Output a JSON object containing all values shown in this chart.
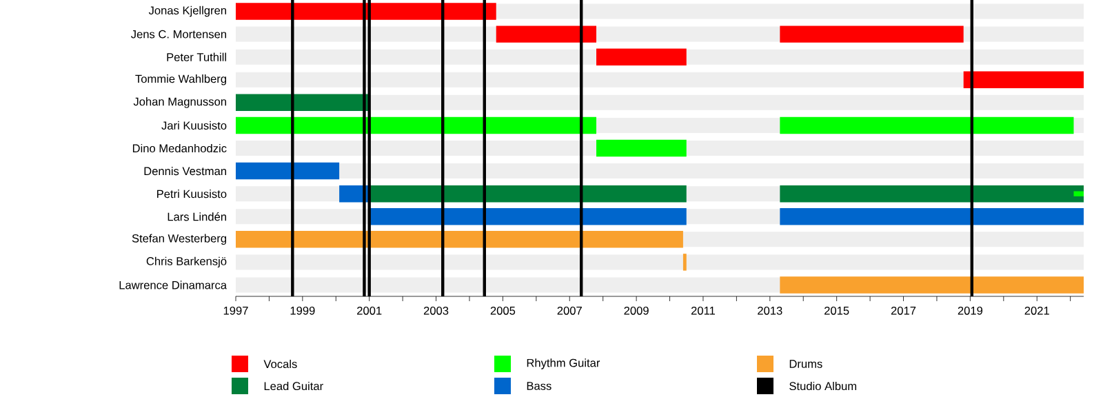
{
  "chart_data": {
    "type": "bar",
    "orientation": "horizontal",
    "categories": [
      "Jonas Kjellgren",
      "Jens C. Mortensen",
      "Peter Tuthill",
      "Tommie Wahlberg",
      "Johan Magnusson",
      "Jari Kuusisto",
      "Dino Medanhodzic",
      "Dennis Vestman",
      "Petri Kuusisto",
      "Lars Lindén",
      "Stefan Westerberg",
      "Chris Barkensjö",
      "Lawrence Dinamarca"
    ],
    "series": [
      {
        "name": "Vocals",
        "color": "#ff0000",
        "base": [
          1997,
          2004.8,
          2007.8,
          2018.8,
          null,
          null,
          null,
          null,
          null,
          null,
          null,
          null,
          null
        ],
        "values": [
          7.8,
          3.0,
          2.7,
          3.6,
          null,
          null,
          null,
          null,
          null,
          null,
          null,
          null,
          null
        ]
      },
      {
        "name": "Lead Guitar",
        "color": "#007f3a",
        "base": [
          null,
          null,
          null,
          null,
          1997,
          null,
          null,
          null,
          2001,
          null,
          null,
          null,
          null
        ],
        "values": [
          null,
          null,
          null,
          null,
          4.0,
          null,
          null,
          null,
          9.5,
          null,
          null,
          null,
          null
        ]
      },
      {
        "name": "Rhythm Guitar",
        "color": "#00ff00",
        "base": [
          null,
          null,
          null,
          null,
          null,
          1997,
          2007.8,
          null,
          null,
          null,
          null,
          null,
          null
        ],
        "values": [
          null,
          null,
          null,
          null,
          null,
          10.8,
          2.7,
          null,
          null,
          null,
          null,
          null,
          null
        ]
      },
      {
        "name": "Bass",
        "color": "#0066cc",
        "base": [
          null,
          null,
          null,
          null,
          null,
          null,
          null,
          1997,
          2000.1,
          2001,
          null,
          null,
          null
        ],
        "values": [
          null,
          null,
          null,
          null,
          null,
          null,
          null,
          3.1,
          0.9,
          9.5,
          null,
          null,
          null
        ]
      },
      {
        "name": "Drums",
        "color": "#f9a12e",
        "base": [
          null,
          null,
          null,
          null,
          null,
          null,
          null,
          null,
          null,
          null,
          1997,
          2010.4,
          2013.3
        ],
        "values": [
          null,
          null,
          null,
          null,
          null,
          null,
          null,
          null,
          null,
          null,
          13.4,
          0.1,
          9.1
        ]
      },
      {
        "color": "#ff0000",
        "base": [
          null,
          2013.3,
          null,
          null,
          null,
          null,
          null,
          null,
          null,
          null,
          null,
          null,
          null
        ],
        "values": [
          null,
          5.5,
          null,
          null,
          null,
          null,
          null,
          null,
          null,
          null,
          null,
          null,
          null
        ]
      },
      {
        "color": "#007f3a",
        "base": [
          null,
          null,
          null,
          null,
          null,
          null,
          null,
          null,
          2013.3,
          null,
          null,
          null,
          null
        ],
        "values": [
          null,
          null,
          null,
          null,
          null,
          null,
          null,
          null,
          9.1,
          null,
          null,
          null,
          null
        ]
      },
      {
        "color": "#00ff00",
        "base": [
          null,
          null,
          null,
          null,
          null,
          2013.3,
          null,
          null,
          2022.1,
          null,
          null,
          null,
          null
        ],
        "values": [
          null,
          null,
          null,
          null,
          null,
          8.8,
          null,
          null,
          0.3,
          null,
          null,
          null,
          null
        ]
      },
      {
        "color": "#0066cc",
        "base": [
          null,
          null,
          null,
          null,
          null,
          null,
          null,
          null,
          null,
          2013.3,
          null,
          null,
          null
        ],
        "values": [
          null,
          null,
          null,
          null,
          null,
          null,
          null,
          null,
          null,
          9.1,
          null,
          null,
          null
        ]
      }
    ],
    "ref_lines": [
      {
        "axis": "x",
        "value": 1998.7,
        "label": "Studio Album",
        "color": "#000000"
      },
      {
        "axis": "x",
        "value": 2000.85,
        "color": "#000000"
      },
      {
        "axis": "x",
        "value": 2001.0,
        "color": "#000000"
      },
      {
        "axis": "x",
        "value": 2003.2,
        "color": "#000000"
      },
      {
        "axis": "x",
        "value": 2004.45,
        "color": "#000000"
      },
      {
        "axis": "x",
        "value": 2007.35,
        "color": "#000000"
      },
      {
        "axis": "x",
        "value": 2019.05,
        "color": "#000000"
      }
    ],
    "xlim": [
      1997,
      2022.4
    ],
    "xticks": [
      1997,
      {
        "value": 1998,
        "label": null
      },
      1999,
      {
        "value": 2000,
        "label": null
      },
      2001,
      {
        "value": 2002,
        "label": null
      },
      2003,
      {
        "value": 2004,
        "label": null
      },
      2005,
      {
        "value": 2006,
        "label": null
      },
      2007,
      {
        "value": 2008,
        "label": null
      },
      2009,
      {
        "value": 2010,
        "label": null
      },
      2011,
      {
        "value": 2012,
        "label": null
      },
      2013,
      {
        "value": 2014,
        "label": null
      },
      2015,
      {
        "value": 2016,
        "label": null
      },
      2017,
      {
        "value": 2018,
        "label": null
      },
      2019,
      {
        "value": 2020,
        "label": null
      },
      2021,
      {
        "value": 2022,
        "label": null
      }
    ],
    "grid": "y",
    "legend": "bottom"
  }
}
